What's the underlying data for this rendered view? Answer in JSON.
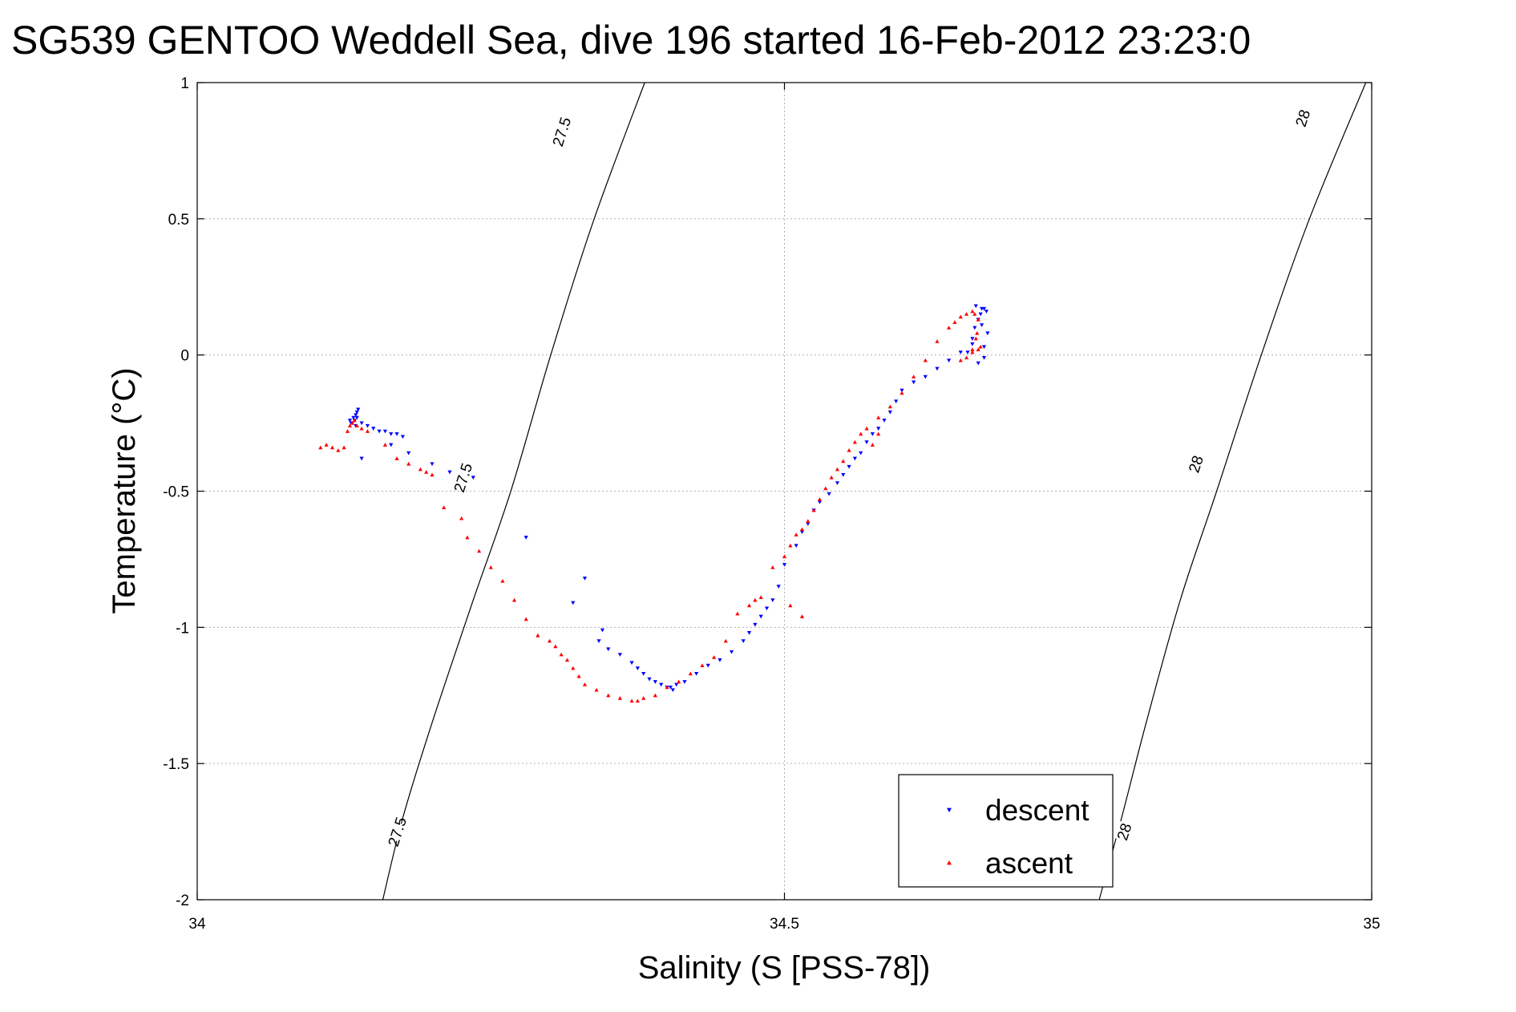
{
  "chart_data": {
    "type": "scatter",
    "title": "SG539 GENTOO Weddell Sea, dive 196 started 16-Feb-2012 23:23:0",
    "xlabel": "Salinity (S [PSS-78])",
    "ylabel": "Temperature (°C)",
    "xlim": [
      34,
      35
    ],
    "ylim": [
      -2,
      1
    ],
    "grid": true,
    "legend_position": "bottom-right",
    "x_ticks": [
      34,
      34.5,
      35
    ],
    "x_tick_labels": [
      "34",
      "34.5",
      "35"
    ],
    "y_ticks": [
      1,
      0.5,
      0,
      -0.5,
      -1,
      -1.5,
      -2
    ],
    "y_tick_labels": [
      "1",
      "0.5",
      "0",
      "-0.5",
      "-1",
      "-1.5",
      "-2"
    ],
    "colors": {
      "descent": "#0000ff",
      "ascent": "#ff0000",
      "contour": "#000000",
      "grid": "#b0b0b0"
    },
    "density_contours": [
      {
        "label": "27.5",
        "points": [
          [
            34.158,
            -2.0
          ],
          [
            34.175,
            -1.7
          ],
          [
            34.2,
            -1.35
          ],
          [
            34.235,
            -0.9
          ],
          [
            34.267,
            -0.5
          ],
          [
            34.301,
            0.0
          ],
          [
            34.338,
            0.5
          ],
          [
            34.381,
            1.0
          ]
        ],
        "label_positions": [
          [
            34.17,
            -1.75
          ],
          [
            34.226,
            -0.45
          ],
          [
            34.31,
            0.82
          ]
        ]
      },
      {
        "label": "28",
        "points": [
          [
            34.768,
            -2.0
          ],
          [
            34.787,
            -1.7
          ],
          [
            34.808,
            -1.35
          ],
          [
            34.837,
            -0.9
          ],
          [
            34.868,
            -0.5
          ],
          [
            34.906,
            0.0
          ],
          [
            34.947,
            0.5
          ],
          [
            34.995,
            1.0
          ]
        ],
        "label_positions": [
          [
            34.789,
            -1.75
          ],
          [
            34.85,
            -0.4
          ],
          [
            34.941,
            0.87
          ]
        ]
      }
    ],
    "series": [
      {
        "name": "descent",
        "marker": "triangle-down",
        "x": [
          34.13,
          34.131,
          34.133,
          34.134,
          34.135,
          34.136,
          34.137,
          34.135,
          34.132,
          34.136,
          34.14,
          34.145,
          34.15,
          34.155,
          34.16,
          34.165,
          34.17,
          34.175,
          34.14,
          34.165,
          34.18,
          34.2,
          34.215,
          34.235,
          34.28,
          34.33,
          34.32,
          34.345,
          34.342,
          34.35,
          34.36,
          34.37,
          34.375,
          34.38,
          34.385,
          34.39,
          34.395,
          34.4,
          34.405,
          34.403,
          34.408,
          34.415,
          34.425,
          34.435,
          34.445,
          34.455,
          34.465,
          34.47,
          34.475,
          34.48,
          34.485,
          34.49,
          34.495,
          34.5,
          34.51,
          34.515,
          34.52,
          34.525,
          34.53,
          34.538,
          34.545,
          34.55,
          34.555,
          34.56,
          34.565,
          34.57,
          34.575,
          34.58,
          34.585,
          34.59,
          34.595,
          34.6,
          34.61,
          34.62,
          34.63,
          34.64,
          34.65,
          34.66,
          34.662,
          34.665,
          34.667,
          34.67,
          34.663,
          34.668,
          34.672,
          34.668,
          34.673,
          34.66,
          34.656,
          34.665,
          34.67,
          34.67
        ],
        "y": [
          -0.24,
          -0.25,
          -0.23,
          -0.24,
          -0.22,
          -0.21,
          -0.2,
          -0.26,
          -0.25,
          -0.23,
          -0.25,
          -0.26,
          -0.27,
          -0.28,
          -0.28,
          -0.29,
          -0.29,
          -0.3,
          -0.38,
          -0.33,
          -0.36,
          -0.4,
          -0.43,
          -0.45,
          -0.67,
          -0.82,
          -0.91,
          -1.01,
          -1.05,
          -1.08,
          -1.1,
          -1.13,
          -1.15,
          -1.17,
          -1.19,
          -1.2,
          -1.21,
          -1.22,
          -1.23,
          -1.22,
          -1.21,
          -1.2,
          -1.17,
          -1.14,
          -1.12,
          -1.09,
          -1.05,
          -1.02,
          -0.99,
          -0.96,
          -0.93,
          -0.9,
          -0.85,
          -0.77,
          -0.7,
          -0.65,
          -0.62,
          -0.57,
          -0.54,
          -0.51,
          -0.47,
          -0.44,
          -0.41,
          -0.38,
          -0.36,
          -0.32,
          -0.29,
          -0.27,
          -0.24,
          -0.21,
          -0.17,
          -0.13,
          -0.1,
          -0.08,
          -0.05,
          -0.02,
          0.01,
          0.06,
          0.1,
          0.13,
          0.15,
          0.17,
          0.18,
          0.17,
          0.16,
          0.11,
          0.08,
          0.04,
          0.01,
          -0.03,
          0.03,
          -0.01
        ]
      },
      {
        "name": "ascent",
        "marker": "triangle-up",
        "x": [
          34.105,
          34.11,
          34.115,
          34.12,
          34.125,
          34.128,
          34.13,
          34.132,
          34.134,
          34.136,
          34.14,
          34.145,
          34.16,
          34.17,
          34.18,
          34.19,
          34.195,
          34.2,
          34.21,
          34.225,
          34.23,
          34.24,
          34.25,
          34.26,
          34.27,
          34.28,
          34.29,
          34.3,
          34.305,
          34.31,
          34.315,
          34.32,
          34.325,
          34.33,
          34.34,
          34.35,
          34.36,
          34.37,
          34.375,
          34.38,
          34.39,
          34.4,
          34.41,
          34.42,
          34.43,
          34.44,
          34.45,
          34.46,
          34.47,
          34.475,
          34.48,
          34.49,
          34.5,
          34.505,
          34.51,
          34.515,
          34.52,
          34.525,
          34.53,
          34.535,
          34.54,
          34.545,
          34.55,
          34.555,
          34.56,
          34.565,
          34.57,
          34.58,
          34.59,
          34.6,
          34.61,
          34.62,
          34.63,
          34.64,
          34.645,
          34.65,
          34.655,
          34.66,
          34.662,
          34.665,
          34.664,
          34.667,
          34.66,
          34.655,
          34.665,
          34.66,
          34.65,
          34.663,
          34.58,
          34.575,
          34.515,
          34.505
        ],
        "y": [
          -0.34,
          -0.33,
          -0.34,
          -0.35,
          -0.34,
          -0.28,
          -0.26,
          -0.25,
          -0.24,
          -0.26,
          -0.27,
          -0.28,
          -0.33,
          -0.38,
          -0.4,
          -0.42,
          -0.43,
          -0.44,
          -0.56,
          -0.6,
          -0.67,
          -0.72,
          -0.78,
          -0.83,
          -0.9,
          -0.97,
          -1.03,
          -1.05,
          -1.07,
          -1.1,
          -1.12,
          -1.15,
          -1.18,
          -1.21,
          -1.23,
          -1.25,
          -1.26,
          -1.27,
          -1.27,
          -1.26,
          -1.25,
          -1.22,
          -1.2,
          -1.17,
          -1.14,
          -1.11,
          -1.05,
          -0.95,
          -0.92,
          -0.9,
          -0.89,
          -0.78,
          -0.74,
          -0.7,
          -0.66,
          -0.64,
          -0.61,
          -0.57,
          -0.53,
          -0.49,
          -0.45,
          -0.42,
          -0.39,
          -0.35,
          -0.32,
          -0.29,
          -0.27,
          -0.23,
          -0.19,
          -0.14,
          -0.08,
          -0.02,
          0.05,
          0.1,
          0.12,
          0.14,
          0.15,
          0.16,
          0.15,
          0.13,
          0.08,
          0.03,
          0.02,
          -0.01,
          0.02,
          0.01,
          -0.02,
          0.06,
          -0.29,
          -0.33,
          -0.96,
          -0.92
        ]
      }
    ],
    "legend": [
      {
        "name": "descent",
        "marker": "triangle-down"
      },
      {
        "name": "ascent",
        "marker": "triangle-up"
      }
    ]
  }
}
